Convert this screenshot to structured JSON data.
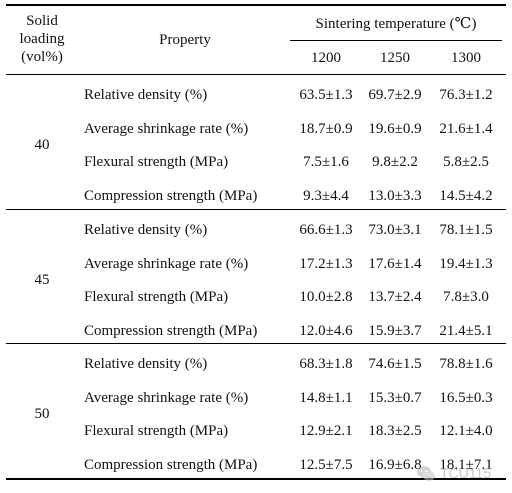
{
  "header": {
    "solid_loading": [
      "Solid",
      "loading",
      "(vol%)"
    ],
    "property": "Property",
    "sintering_temperature": "Sintering temperature (℃)",
    "temperatures": [
      "1200",
      "1250",
      "1300"
    ]
  },
  "groups": [
    {
      "loading": "40",
      "rows": [
        {
          "property": "Relative density (%)",
          "values": [
            "63.5±1.3",
            "69.7±2.9",
            "76.3±1.2"
          ]
        },
        {
          "property": "Average shrinkage rate (%)",
          "values": [
            "18.7±0.9",
            "19.6±0.9",
            "21.6±1.4"
          ]
        },
        {
          "property": "Flexural strength (MPa)",
          "values": [
            "7.5±1.6",
            "9.8±2.2",
            "5.8±2.5"
          ]
        },
        {
          "property": "Compression strength (MPa)",
          "values": [
            "9.3±4.4",
            "13.0±3.3",
            "14.5±4.2"
          ]
        }
      ]
    },
    {
      "loading": "45",
      "rows": [
        {
          "property": "Relative density (%)",
          "values": [
            "66.6±1.3",
            "73.0±3.1",
            "78.1±1.5"
          ]
        },
        {
          "property": "Average shrinkage rate (%)",
          "values": [
            "17.2±1.3",
            "17.6±1.4",
            "19.4±1.3"
          ]
        },
        {
          "property": "Flexural strength (MPa)",
          "values": [
            "10.0±2.8",
            "13.7±2.4",
            "7.8±3.0"
          ]
        },
        {
          "property": "Compression strength (MPa)",
          "values": [
            "12.0±4.6",
            "15.9±3.7",
            "21.4±5.1"
          ]
        }
      ]
    },
    {
      "loading": "50",
      "rows": [
        {
          "property": "Relative density (%)",
          "values": [
            "68.3±1.8",
            "74.6±1.5",
            "78.8±1.6"
          ]
        },
        {
          "property": "Average shrinkage rate (%)",
          "values": [
            "14.8±1.1",
            "15.3±0.7",
            "16.5±0.3"
          ]
        },
        {
          "property": "Flexural strength (MPa)",
          "values": [
            "12.9±2.1",
            "18.3±2.5",
            "12.1±4.0"
          ]
        },
        {
          "property": "Compression strength (MPa)",
          "values": [
            "12.5±7.5",
            "16.9±6.8",
            "18.1±7.1"
          ]
        }
      ]
    }
  ],
  "watermark": {
    "text": "TCU115",
    "icon": "wechat-icon"
  }
}
